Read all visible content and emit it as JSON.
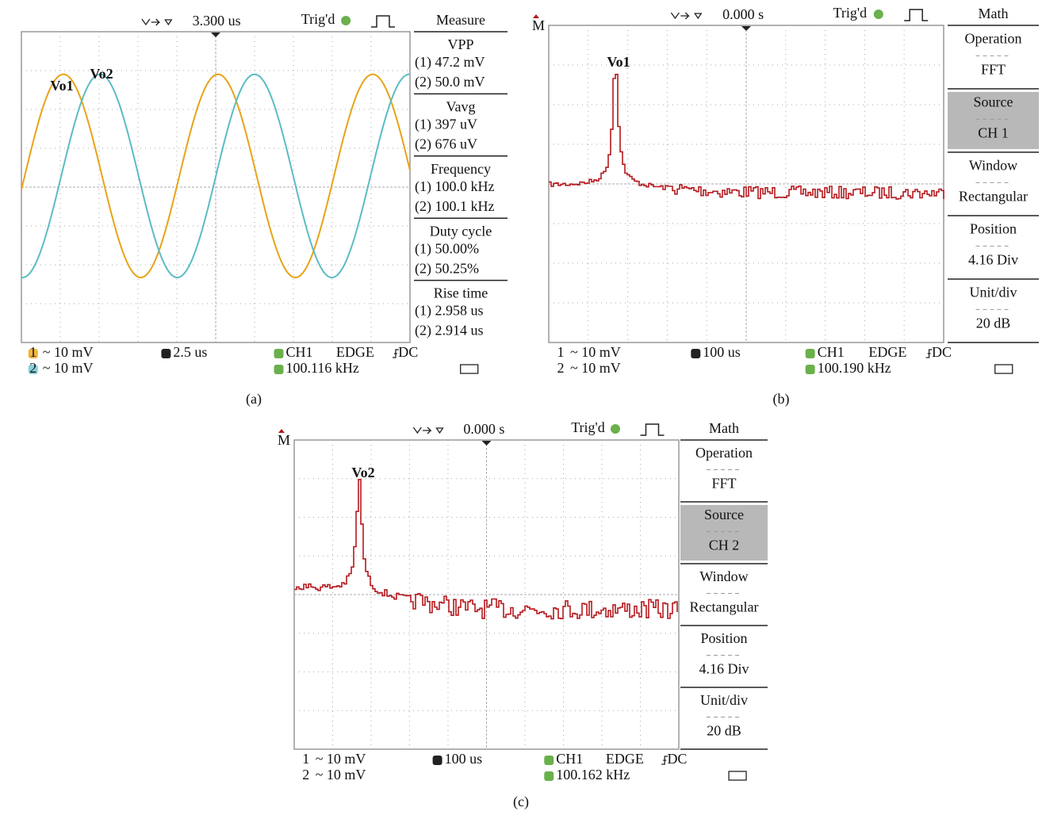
{
  "panels": [
    {
      "caption": "(a)",
      "time": "3.300 us",
      "trigger": "Trig'd",
      "boxed_index": true,
      "annotations": [
        "Vo1",
        "Vo2"
      ],
      "menu": {
        "title": "Measure",
        "items": [
          {
            "label": "VPP",
            "values": [
              "(1) 47.2 mV",
              "(2) 50.0 mV"
            ]
          },
          {
            "label": "Vavg",
            "values": [
              "(1) 397 uV",
              "(2) 676 uV"
            ]
          },
          {
            "label": "Frequency",
            "values": [
              "(1) 100.0 kHz",
              "(2) 100.1 kHz"
            ]
          },
          {
            "label": "Duty cycle",
            "values": [
              "(1) 50.00%",
              "(2) 50.25%"
            ]
          },
          {
            "label": "Rise time",
            "values": [
              "(1) 2.958 us",
              "(2) 2.914 us"
            ]
          }
        ]
      },
      "footer": {
        "channels": [
          {
            "index": "1",
            "scale": "~ 10 mV"
          },
          {
            "index": "2",
            "scale": "~ 10 mV"
          }
        ],
        "timebase": "2.5 us",
        "source": "CH1",
        "mode": "EDGE",
        "coupling": "DC",
        "frequency": "100.116 kHz"
      }
    },
    {
      "caption": "(b)",
      "time": "0.000 s",
      "trigger": "Trig'd",
      "boxed_index": false,
      "marker": "M",
      "annotations": [
        "Vo1"
      ],
      "menu": {
        "title": "Math",
        "items": [
          {
            "label": "Operation",
            "values": [
              "FFT"
            ]
          },
          {
            "label": "Source",
            "values": [
              "CH 1"
            ],
            "selected": true
          },
          {
            "label": "Window",
            "values": [
              "Rectangular"
            ]
          },
          {
            "label": "Position",
            "values": [
              "4.16 Div"
            ]
          },
          {
            "label": "Unit/div",
            "values": [
              "20 dB"
            ]
          }
        ]
      },
      "footer": {
        "channels": [
          {
            "index": "1",
            "scale": "~ 10 mV"
          },
          {
            "index": "2",
            "scale": "~ 10 mV"
          }
        ],
        "timebase": "100 us",
        "source": "CH1",
        "mode": "EDGE",
        "coupling": "DC",
        "frequency": "100.190 kHz"
      }
    },
    {
      "caption": "(c)",
      "time": "0.000 s",
      "trigger": "Trig'd",
      "boxed_index": false,
      "marker": "M",
      "annotations": [
        "Vo2"
      ],
      "menu": {
        "title": "Math",
        "items": [
          {
            "label": "Operation",
            "values": [
              "FFT"
            ]
          },
          {
            "label": "Source",
            "values": [
              "CH 2"
            ],
            "selected": true
          },
          {
            "label": "Window",
            "values": [
              "Rectangular"
            ]
          },
          {
            "label": "Position",
            "values": [
              "4.16 Div"
            ]
          },
          {
            "label": "Unit/div",
            "values": [
              "20 dB"
            ]
          }
        ]
      },
      "footer": {
        "channels": [
          {
            "index": "1",
            "scale": "~ 10 mV"
          },
          {
            "index": "2",
            "scale": "~ 10 mV"
          }
        ],
        "timebase": "100 us",
        "source": "CH1",
        "mode": "EDGE",
        "coupling": "DC",
        "frequency": "100.162 kHz"
      }
    }
  ]
}
